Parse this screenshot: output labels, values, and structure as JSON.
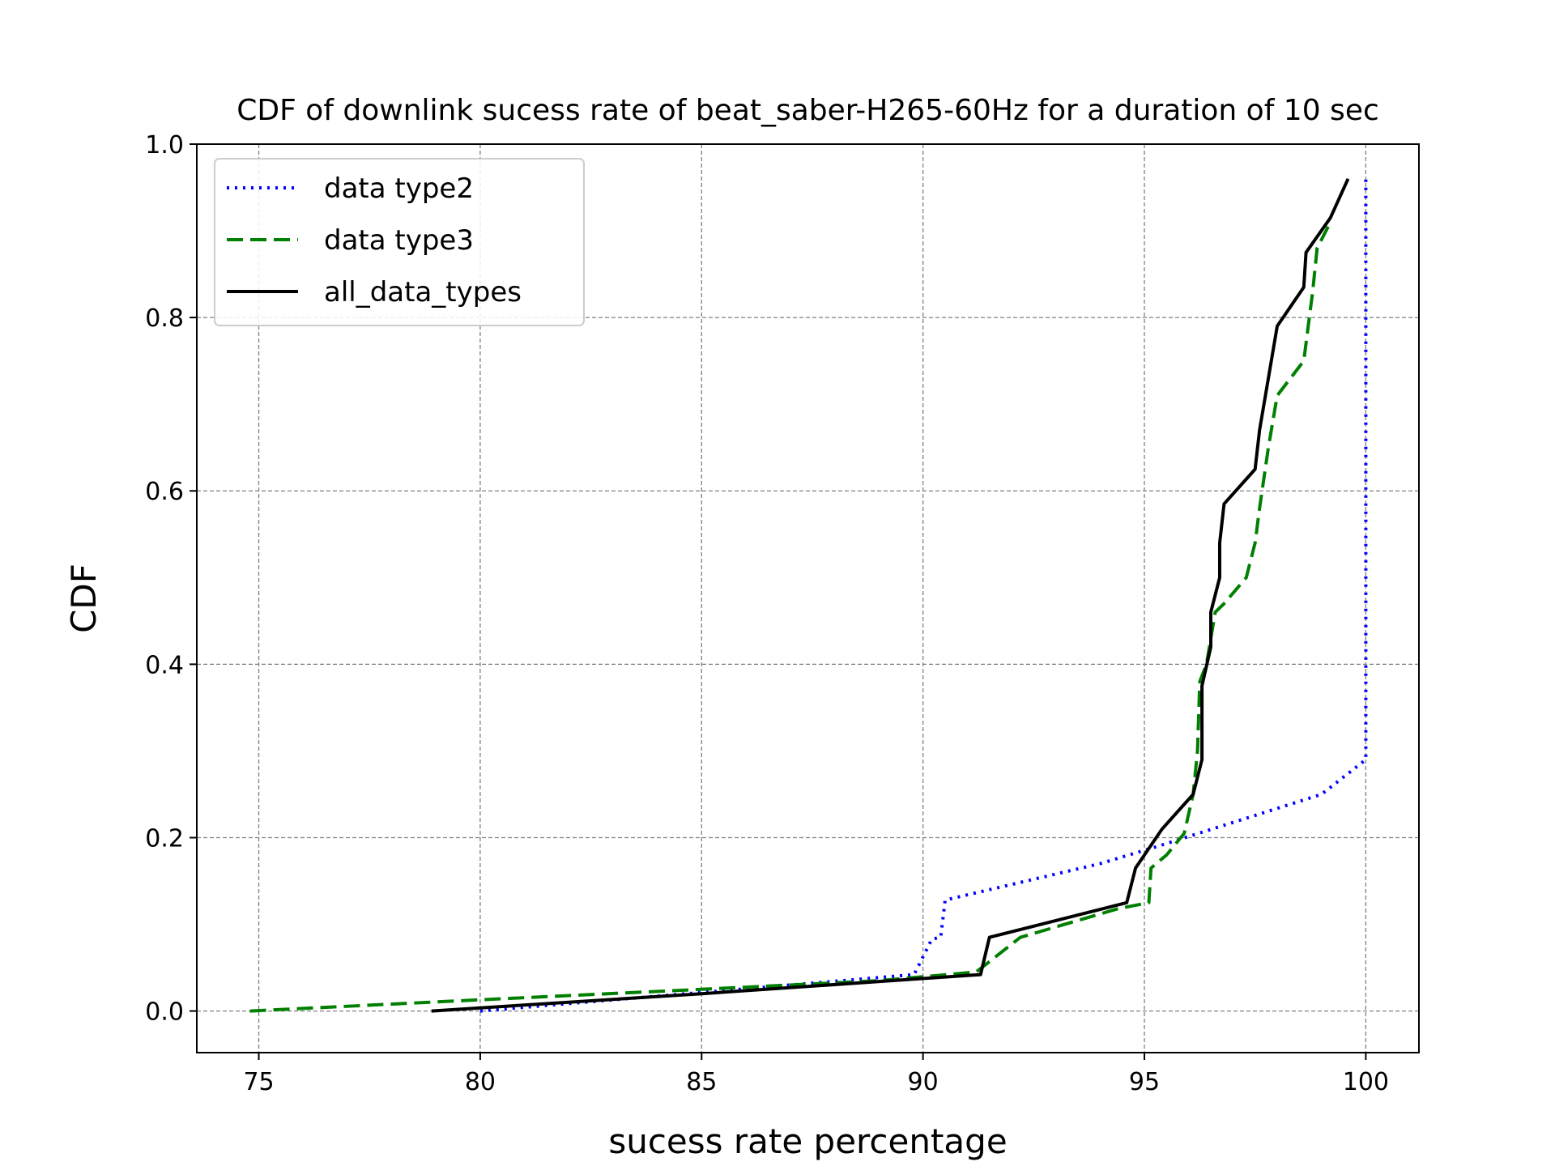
{
  "chart_data": {
    "type": "line",
    "title": "CDF of downlink sucess rate of beat_saber-H265-60Hz for a duration of 10 sec",
    "xlabel": "sucess rate percentage",
    "ylabel": "CDF",
    "xlim": [
      73.6,
      101.2
    ],
    "ylim": [
      -0.048,
      1.0
    ],
    "x_ticks": [
      75,
      80,
      85,
      90,
      95,
      100
    ],
    "y_ticks": [
      0.0,
      0.2,
      0.4,
      0.6,
      0.8,
      1.0
    ],
    "x_tick_labels": [
      "75",
      "80",
      "85",
      "90",
      "95",
      "100"
    ],
    "y_tick_labels": [
      "0.0",
      "0.2",
      "0.4",
      "0.6",
      "0.8",
      "1.0"
    ],
    "grid": true,
    "legend_position": "upper-left",
    "series": [
      {
        "name": "data type2",
        "color": "#0000ff",
        "style": "dotted",
        "x": [
          80.0,
          89.8,
          90.2,
          90.4,
          90.5,
          94.0,
          95.3,
          99.0,
          100.0,
          100.0,
          100.0
        ],
        "y": [
          0.0,
          0.042,
          0.083,
          0.085,
          0.128,
          0.17,
          0.19,
          0.25,
          0.29,
          0.5,
          0.96
        ]
      },
      {
        "name": "data type3",
        "color": "#008000",
        "style": "dashed",
        "x": [
          74.8,
          80.0,
          85.0,
          89.0,
          91.2,
          92.2,
          94.4,
          95.1,
          95.15,
          95.5,
          95.9,
          96.1,
          96.2,
          96.25,
          96.4,
          96.6,
          96.8,
          97.3,
          97.5,
          97.6,
          97.8,
          98.0,
          98.6,
          98.7,
          98.8,
          98.9,
          99.2
        ],
        "y": [
          0.0,
          0.013,
          0.025,
          0.035,
          0.045,
          0.085,
          0.118,
          0.125,
          0.165,
          0.18,
          0.205,
          0.25,
          0.3,
          0.38,
          0.4,
          0.46,
          0.47,
          0.5,
          0.54,
          0.58,
          0.65,
          0.71,
          0.75,
          0.79,
          0.83,
          0.88,
          0.91
        ]
      },
      {
        "name": "all_data_types",
        "color": "#000000",
        "style": "solid",
        "x": [
          78.9,
          85.0,
          91.3,
          91.5,
          94.6,
          94.8,
          95.4,
          96.1,
          96.3,
          96.3,
          96.5,
          96.5,
          96.7,
          96.7,
          96.8,
          97.5,
          97.6,
          98.0,
          98.6,
          98.65,
          99.2,
          99.6
        ],
        "y": [
          0.0,
          0.02,
          0.042,
          0.085,
          0.125,
          0.165,
          0.21,
          0.25,
          0.29,
          0.375,
          0.42,
          0.46,
          0.5,
          0.54,
          0.585,
          0.625,
          0.67,
          0.79,
          0.835,
          0.875,
          0.915,
          0.96
        ]
      }
    ]
  }
}
